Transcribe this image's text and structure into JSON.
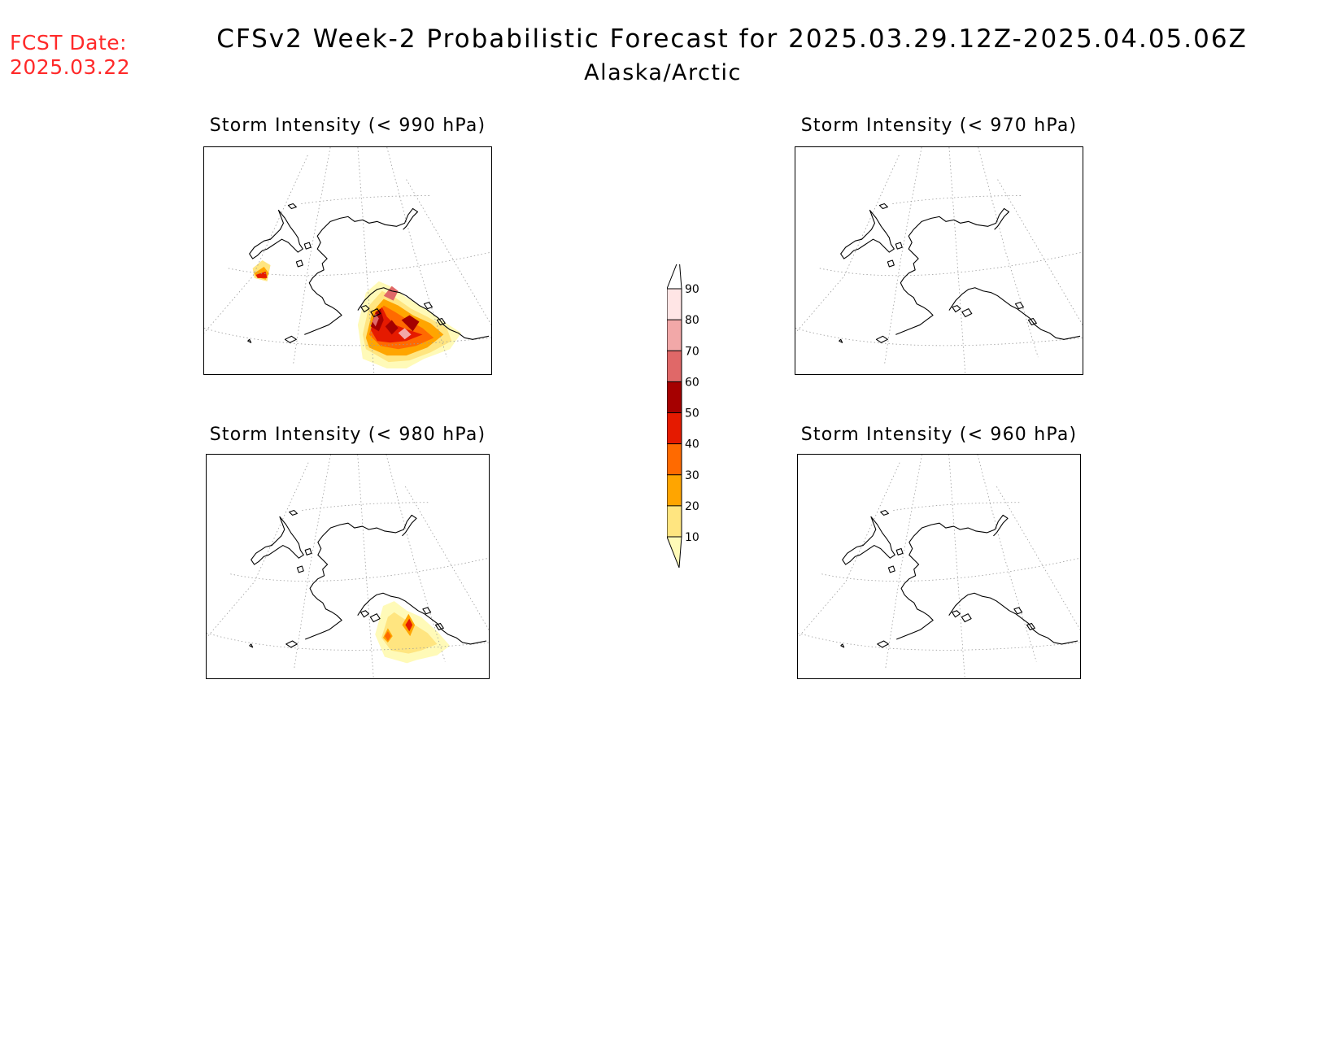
{
  "header": {
    "fcst_label": "FCST Date:",
    "fcst_date": "2025.03.22",
    "title": "CFSv2 Week-2 Probabilistic Forecast for 2025.03.29.12Z-2025.04.05.06Z",
    "subtitle": "Alaska/Arctic"
  },
  "panels": [
    {
      "title": "Storm Intensity (< 990 hPa)",
      "intensity": "high"
    },
    {
      "title": "Storm Intensity (< 970 hPa)",
      "intensity": "none"
    },
    {
      "title": "Storm Intensity (< 980 hPa)",
      "intensity": "low"
    },
    {
      "title": "Storm Intensity (< 960 hPa)",
      "intensity": "none"
    }
  ],
  "colorbar": {
    "levels": [
      "10",
      "20",
      "30",
      "40",
      "50",
      "60",
      "70",
      "80",
      "90"
    ],
    "colors": [
      "#fffab8",
      "#ffe580",
      "#ffa500",
      "#ff6a00",
      "#e51a00",
      "#a50000",
      "#e06868",
      "#f2a8a8",
      "#ffe5e5",
      "#ffffff"
    ]
  }
}
